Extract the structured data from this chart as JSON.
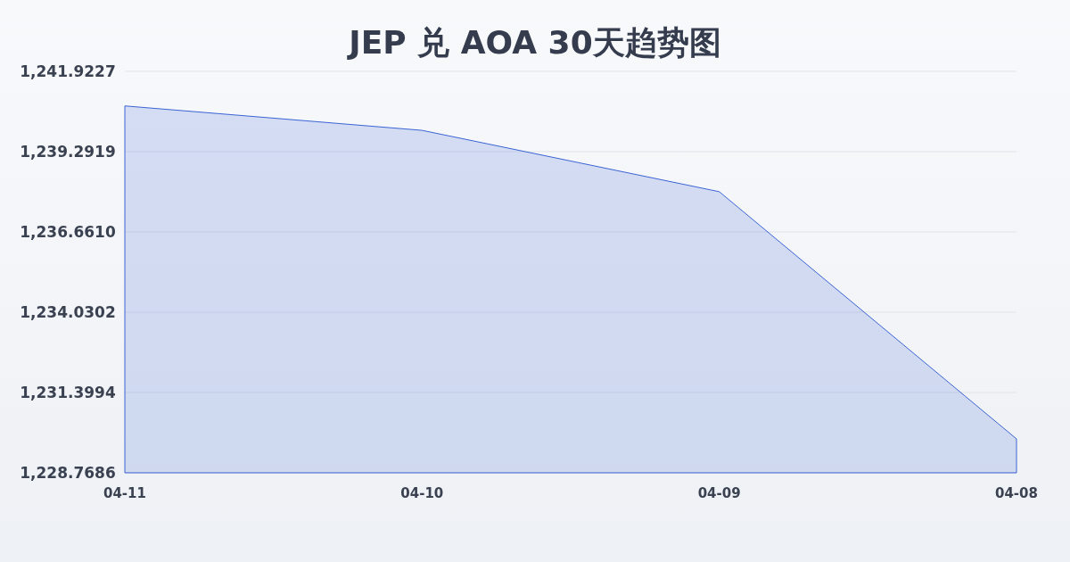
{
  "chart_data": {
    "type": "area",
    "title": "JEP 兑 AOA 30天趋势图",
    "categories": [
      "04-11",
      "04-10",
      "04-09",
      "04-08"
    ],
    "series": [
      {
        "color": "#3b64d4",
        "values": [
          1240.79,
          1239.99,
          1237.98,
          1229.88
        ]
      }
    ],
    "ylim": [
      1228.7686,
      1241.9227
    ],
    "yticks": [
      {
        "value": 1228.7686,
        "label": "1,228.7686"
      },
      {
        "value": 1231.3994,
        "label": "1,231.3994"
      },
      {
        "value": 1234.0302,
        "label": "1,234.0302"
      },
      {
        "value": 1236.661,
        "label": "1,236.6610"
      },
      {
        "value": 1239.2919,
        "label": "1,239.2919"
      },
      {
        "value": 1241.9227,
        "label": "1,241.9227"
      }
    ],
    "grid": "y",
    "marker": "none"
  }
}
